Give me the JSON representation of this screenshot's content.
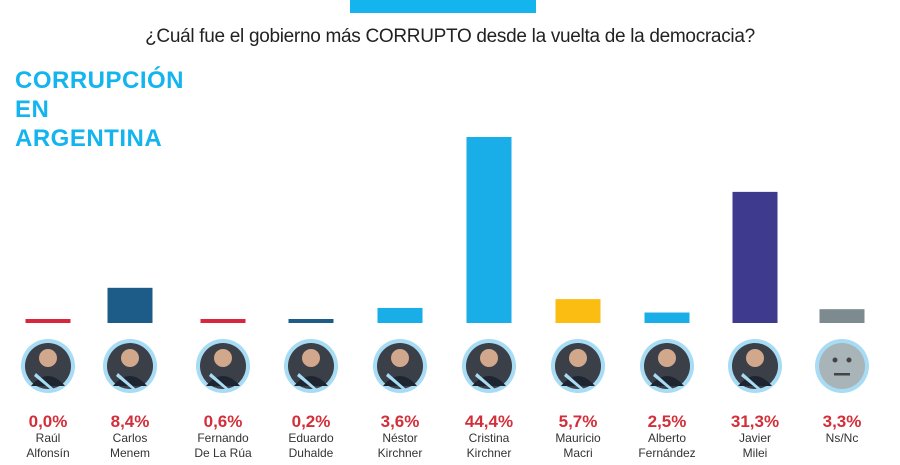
{
  "chart_data": {
    "type": "bar",
    "title": "¿Cuál fue el gobierno más CORRUPTO desde la vuelta de la democracia?",
    "subtitle_lines": [
      "CORRUPCIÓN",
      "EN",
      "ARGENTINA"
    ],
    "categories": [
      [
        "Raúl",
        "Alfonsín"
      ],
      [
        "Carlos",
        "Menem"
      ],
      [
        "Fernando",
        "De La Rúa"
      ],
      [
        "Eduardo",
        "Duhalde"
      ],
      [
        "Néstor",
        "Kirchner"
      ],
      [
        "Cristina",
        "Kirchner"
      ],
      [
        "Mauricio",
        "Macri"
      ],
      [
        "Alberto",
        "Fernández"
      ],
      [
        "Javier",
        "Milei"
      ],
      [
        "Ns/Nc",
        ""
      ]
    ],
    "values": [
      0.0,
      8.4,
      0.6,
      0.2,
      3.6,
      44.4,
      5.7,
      2.5,
      31.3,
      3.3
    ],
    "labels": [
      "0,0%",
      "8,4%",
      "0,6%",
      "0,2%",
      "3,6%",
      "44,4%",
      "5,7%",
      "2,5%",
      "31,3%",
      "3,3%"
    ],
    "colors": [
      "#d7263d",
      "#1d5c88",
      "#d7263d",
      "#1d5c88",
      "#1aaee8",
      "#1aaee8",
      "#fbbd12",
      "#1aaee8",
      "#3e3a8e",
      "#7d8a90"
    ],
    "icons": [
      "person-photo",
      "person-photo",
      "person-photo",
      "person-photo",
      "person-photo",
      "person-photo",
      "person-photo",
      "person-photo",
      "person-photo",
      "neutral-face"
    ],
    "ylim": [
      0,
      44.4
    ],
    "grid": false,
    "accent": "#14b4ee"
  }
}
